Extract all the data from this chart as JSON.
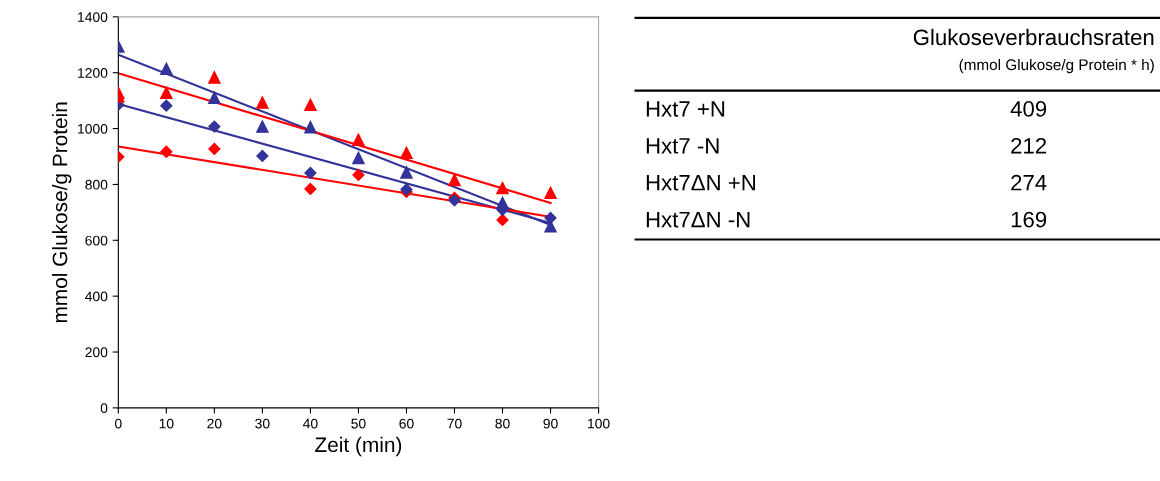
{
  "chart_data": [
    {
      "type": "scatter",
      "xlabel": "Zeit (min)",
      "ylabel": "mmol Glukose/g Protein",
      "x": [
        0,
        10,
        20,
        30,
        40,
        50,
        60,
        70,
        80,
        90
      ],
      "xlim": [
        0,
        100
      ],
      "xticks": [
        0,
        10,
        20,
        30,
        40,
        50,
        60,
        70,
        80,
        90,
        100
      ],
      "ylim": [
        0,
        1400
      ],
      "yticks": [
        0,
        200,
        400,
        600,
        800,
        1000,
        1200,
        1400
      ],
      "grid": false,
      "legend": false,
      "series": [
        {
          "color": "#ff0000",
          "marker": "diamond",
          "values": [
            899,
            917,
            927,
            null,
            784,
            834,
            773,
            752,
            673,
            null
          ]
        },
        {
          "color": "#333399",
          "marker": "diamond",
          "values": [
            1085,
            1082,
            1007,
            902,
            841,
            null,
            782,
            743,
            709,
            680
          ]
        },
        {
          "color": "#333399",
          "marker": "triangle",
          "values": [
            1294,
            1214,
            1110,
            1007,
            1005,
            895,
            843,
            null,
            734,
            650
          ]
        },
        {
          "color": "#ff0000",
          "marker": "triangle",
          "x": [
            0,
            0,
            10,
            20,
            30,
            40,
            50,
            60,
            70,
            80,
            90
          ],
          "values": [
            1128,
            1116,
            1128,
            1183,
            1093,
            1085,
            960,
            913,
            816,
            787,
            770
          ]
        },
        {
          "type": "line",
          "color": "#333399",
          "marker": "none",
          "line_style": "solid",
          "x": [
            0,
            90
          ],
          "values": [
            1264,
            655
          ]
        },
        {
          "type": "line",
          "color": "#ff0000",
          "marker": "none",
          "line_style": "solid",
          "x": [
            0,
            90
          ],
          "values": [
            1198,
            734
          ]
        },
        {
          "type": "line",
          "color": "#333399",
          "marker": "none",
          "line_style": "solid",
          "x": [
            0,
            90
          ],
          "values": [
            1088,
            662
          ]
        },
        {
          "type": "line",
          "color": "#ff0000",
          "marker": "none",
          "line_style": "solid",
          "x": [
            0,
            90
          ],
          "values": [
            936,
            684
          ]
        }
      ]
    },
    {
      "type": "other",
      "title": "Glukoseverbrauchsraten",
      "subtitle": "(mmol Glukose/g Protein * h)",
      "categories": [
        "Hxt7 +N",
        "Hxt7 -N",
        "Hxt7ΔN +N",
        "Hxt7ΔN -N"
      ],
      "values": [
        409,
        212,
        274,
        169
      ],
      "data_labels": true
    }
  ]
}
